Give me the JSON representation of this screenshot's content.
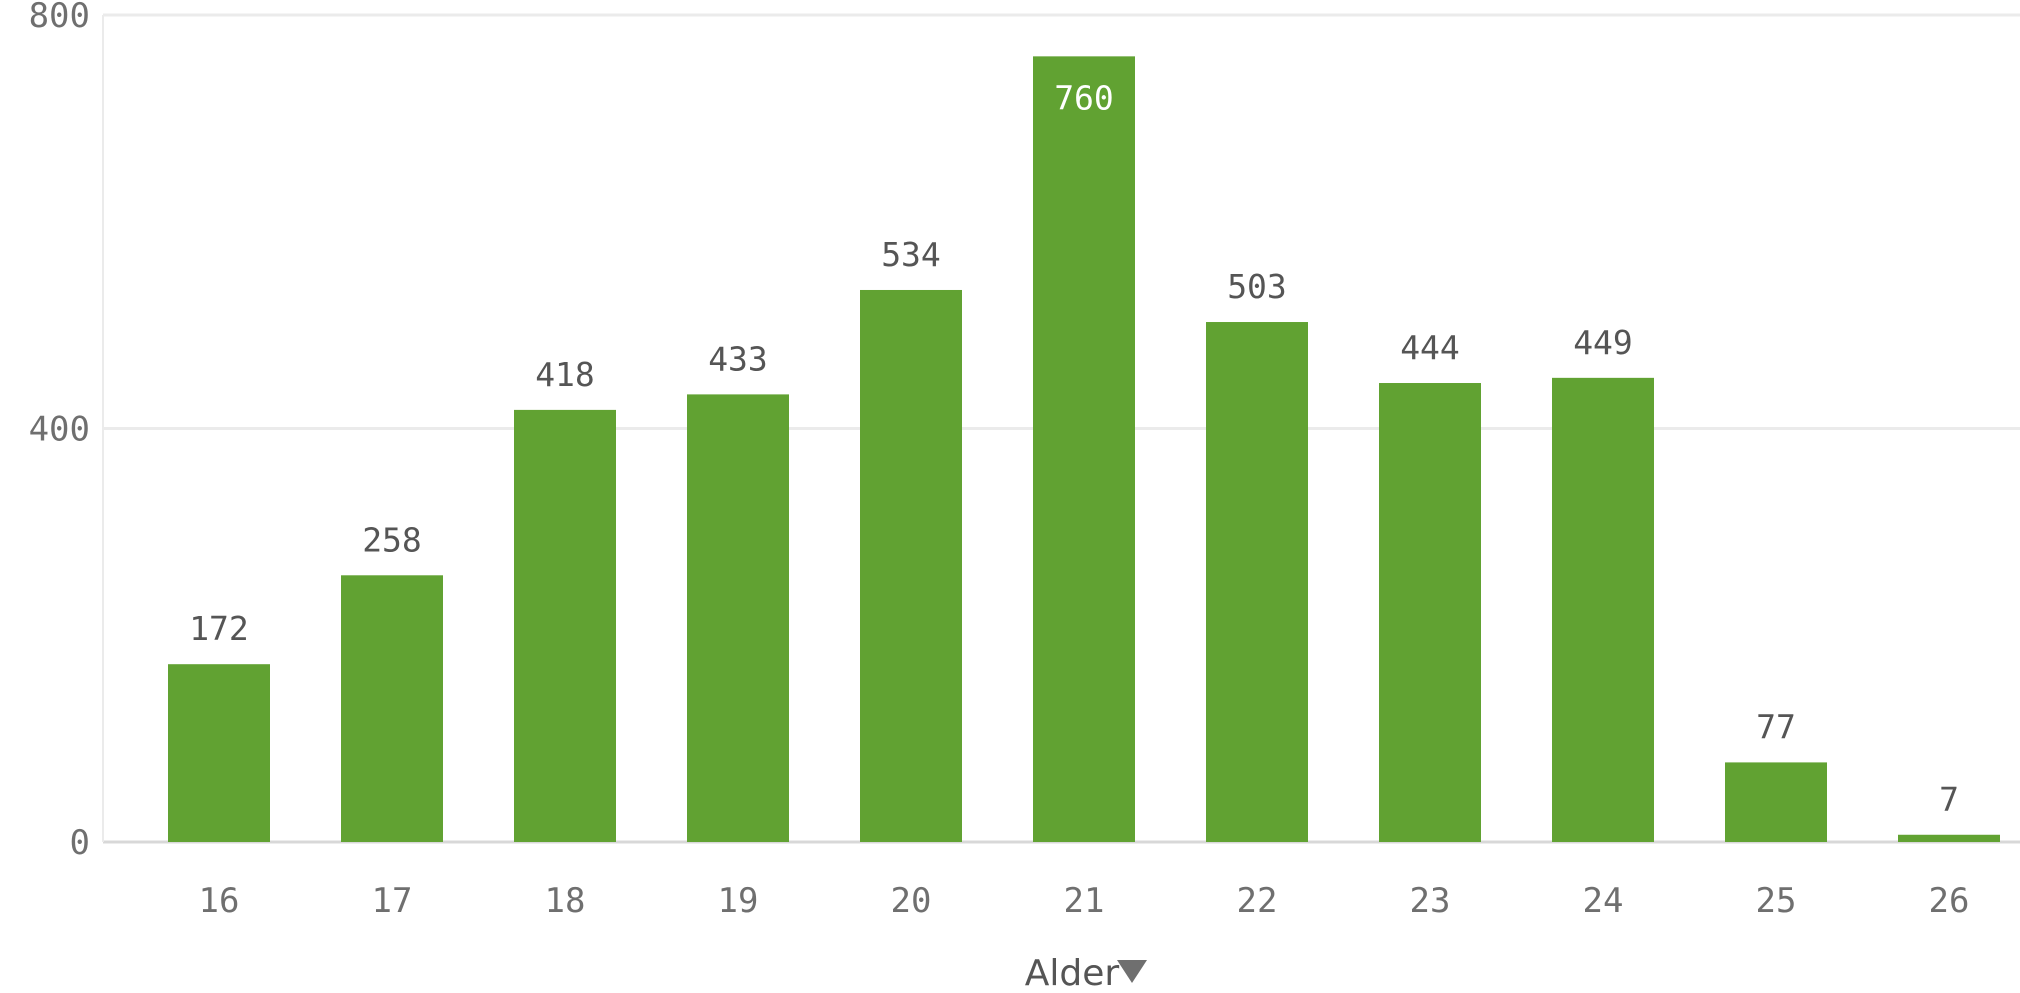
{
  "chart_data": {
    "type": "bar",
    "categories": [
      "16",
      "17",
      "18",
      "19",
      "20",
      "21",
      "22",
      "23",
      "24",
      "25",
      "26"
    ],
    "series": [
      {
        "values": [
          172,
          258,
          418,
          433,
          534,
          760,
          503,
          444,
          449,
          77,
          7
        ]
      }
    ],
    "xlabel": "Alder",
    "ylabel": "",
    "ylim": [
      0,
      800
    ],
    "yticks": [
      "0",
      "400",
      "800"
    ],
    "grid": true,
    "legend": "none",
    "colors": {
      "bar": "#61a232",
      "grid": "#ebebeb",
      "axis": "#d8d8d8"
    }
  },
  "x_axis": {
    "title": "Alder",
    "sort_icon": "triangle-down-icon"
  }
}
